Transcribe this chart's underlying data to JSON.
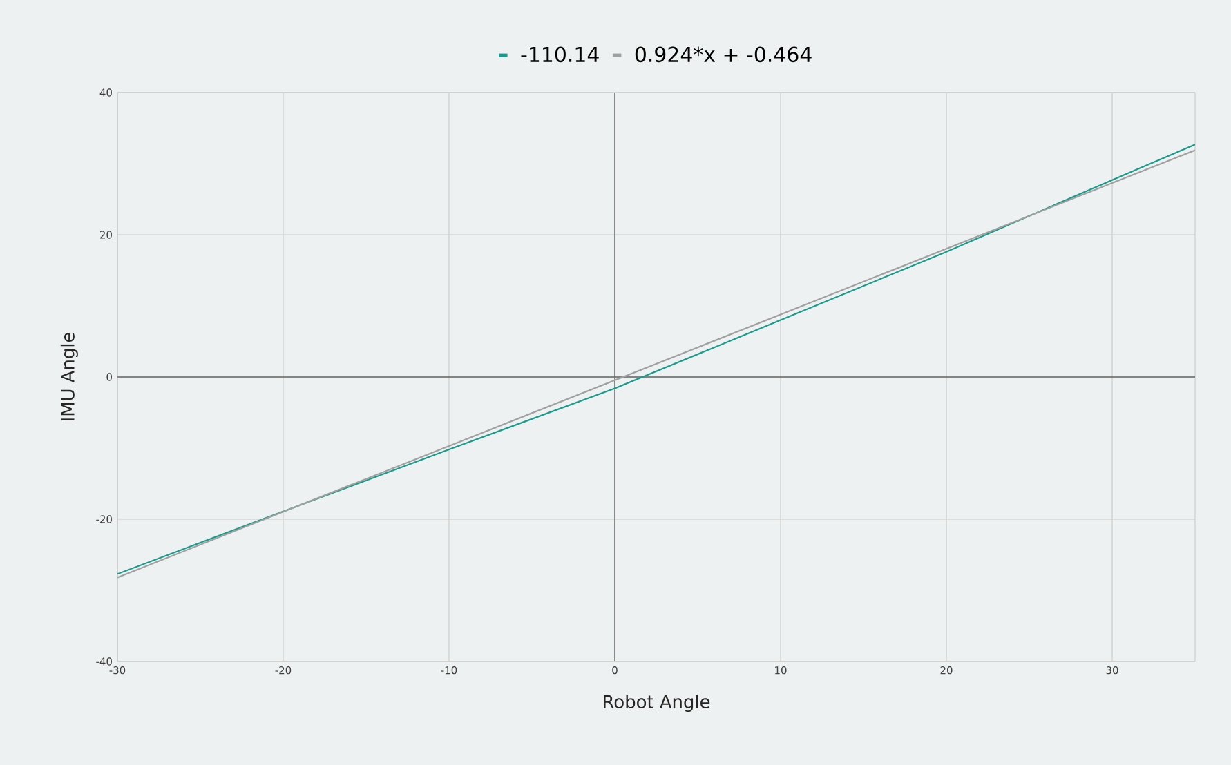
{
  "chart_data": {
    "type": "line",
    "xlabel": "Robot Angle",
    "ylabel": "IMU Angle",
    "series": [
      {
        "name": "-110.14",
        "color": "#1a9a8a",
        "x": [
          -30,
          -20,
          -10,
          0,
          10,
          20,
          30,
          35
        ],
        "values": [
          -27.7,
          -18.9,
          -10.2,
          -1.6,
          8.0,
          17.6,
          27.7,
          32.7
        ]
      },
      {
        "name": "0.924*x + -0.464",
        "color": "#a0a0a0",
        "x": [
          -30,
          35
        ],
        "values": [
          -28.2,
          31.9
        ]
      }
    ],
    "xlim": [
      -30,
      35
    ],
    "ylim": [
      -40,
      40
    ],
    "xticks": [
      -30,
      -20,
      -10,
      0,
      10,
      20,
      30
    ],
    "yticks": [
      -40,
      -20,
      0,
      20,
      40
    ],
    "grid": true,
    "legend": "top",
    "marker": "none",
    "line_style": "solid"
  }
}
